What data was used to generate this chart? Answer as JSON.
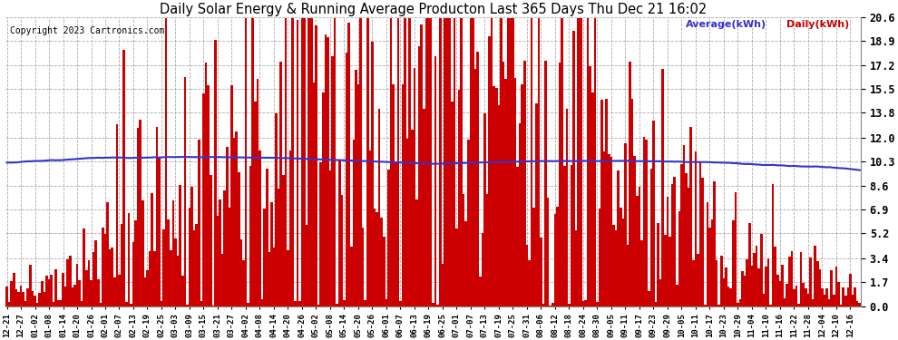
{
  "title": "Daily Solar Energy & Running Average Producton Last 365 Days Thu Dec 21 16:02",
  "copyright": "Copyright 2023 Cartronics.com",
  "ylabel_right_values": [
    20.6,
    18.9,
    17.2,
    15.5,
    13.8,
    12.0,
    10.3,
    8.6,
    6.9,
    5.2,
    3.4,
    1.7,
    0.0
  ],
  "ymax": 20.6,
  "ymin": 0.0,
  "bar_color": "#cc0000",
  "avg_color": "#3333cc",
  "legend_avg_label": "Average(kWh)",
  "legend_daily_label": "Daily(kWh)",
  "background_color": "#ffffff",
  "grid_color": "#aaaaaa",
  "num_bars": 365,
  "x_tick_labels": [
    "12-21",
    "12-27",
    "01-02",
    "01-08",
    "01-14",
    "01-20",
    "01-26",
    "02-01",
    "02-07",
    "02-13",
    "02-19",
    "02-25",
    "03-03",
    "03-09",
    "03-15",
    "03-21",
    "03-27",
    "04-02",
    "04-08",
    "04-14",
    "04-20",
    "04-26",
    "05-02",
    "05-08",
    "05-14",
    "05-20",
    "05-26",
    "06-01",
    "06-07",
    "06-13",
    "06-19",
    "06-25",
    "07-01",
    "07-07",
    "07-13",
    "07-19",
    "07-25",
    "07-31",
    "08-06",
    "08-12",
    "08-18",
    "08-24",
    "08-30",
    "09-05",
    "09-11",
    "09-17",
    "09-23",
    "09-29",
    "10-05",
    "10-11",
    "10-17",
    "10-23",
    "10-29",
    "11-04",
    "11-10",
    "11-16",
    "11-22",
    "11-28",
    "12-04",
    "12-10",
    "12-16"
  ],
  "tick_step": 6
}
